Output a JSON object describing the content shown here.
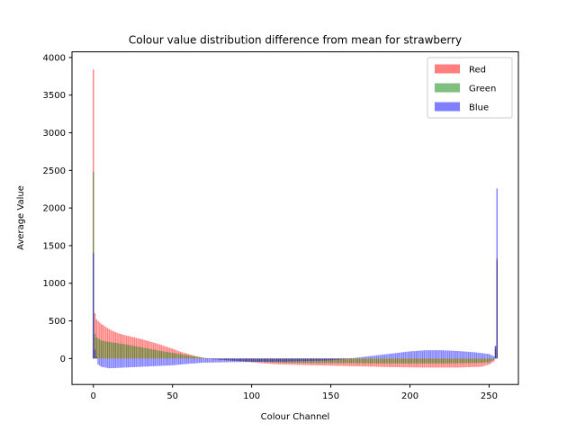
{
  "chart_data": {
    "type": "bar",
    "title": "Colour value distribution difference from mean for strawberry",
    "xlabel": "Colour Channel",
    "ylabel": "Average Value",
    "xlim": [
      -13.5,
      268.5
    ],
    "ylim": [
      -345,
      4075
    ],
    "xticks": [
      0,
      50,
      100,
      150,
      200,
      250
    ],
    "yticks": [
      0,
      500,
      1000,
      1500,
      2000,
      2500,
      3000,
      3500,
      4000
    ],
    "grid": false,
    "legend_position": "top-right",
    "series": [
      {
        "name": "Red",
        "color": "#ff0000",
        "alpha": 0.5,
        "keypoints": [
          [
            0,
            3840
          ],
          [
            1,
            600
          ],
          [
            2,
            520
          ],
          [
            5,
            460
          ],
          [
            10,
            390
          ],
          [
            15,
            340
          ],
          [
            20,
            310
          ],
          [
            30,
            260
          ],
          [
            40,
            200
          ],
          [
            50,
            130
          ],
          [
            55,
            90
          ],
          [
            60,
            60
          ],
          [
            65,
            30
          ],
          [
            70,
            5
          ],
          [
            75,
            -10
          ],
          [
            85,
            -25
          ],
          [
            95,
            -40
          ],
          [
            105,
            -60
          ],
          [
            115,
            -75
          ],
          [
            130,
            -85
          ],
          [
            150,
            -95
          ],
          [
            170,
            -105
          ],
          [
            190,
            -115
          ],
          [
            210,
            -120
          ],
          [
            230,
            -120
          ],
          [
            245,
            -110
          ],
          [
            250,
            -80
          ],
          [
            253,
            -40
          ],
          [
            254,
            160
          ],
          [
            255,
            1330
          ]
        ]
      },
      {
        "name": "Green",
        "color": "#008000",
        "alpha": 0.5,
        "keypoints": [
          [
            0,
            2480
          ],
          [
            1,
            330
          ],
          [
            2,
            280
          ],
          [
            5,
            240
          ],
          [
            10,
            220
          ],
          [
            20,
            190
          ],
          [
            30,
            150
          ],
          [
            40,
            110
          ],
          [
            50,
            75
          ],
          [
            60,
            40
          ],
          [
            70,
            10
          ],
          [
            80,
            -15
          ],
          [
            90,
            -30
          ],
          [
            100,
            -40
          ],
          [
            120,
            -55
          ],
          [
            140,
            -60
          ],
          [
            160,
            -60
          ],
          [
            180,
            -65
          ],
          [
            200,
            -65
          ],
          [
            220,
            -65
          ],
          [
            240,
            -60
          ],
          [
            250,
            -50
          ],
          [
            253,
            -20
          ],
          [
            254,
            120
          ],
          [
            255,
            1300
          ]
        ]
      },
      {
        "name": "Blue",
        "color": "#0000ff",
        "alpha": 0.5,
        "keypoints": [
          [
            0,
            1400
          ],
          [
            1,
            120
          ],
          [
            3,
            -80
          ],
          [
            5,
            -110
          ],
          [
            10,
            -130
          ],
          [
            20,
            -120
          ],
          [
            30,
            -110
          ],
          [
            40,
            -100
          ],
          [
            50,
            -90
          ],
          [
            60,
            -70
          ],
          [
            70,
            -55
          ],
          [
            80,
            -50
          ],
          [
            100,
            -45
          ],
          [
            120,
            -40
          ],
          [
            140,
            -30
          ],
          [
            150,
            -25
          ],
          [
            160,
            -5
          ],
          [
            170,
            20
          ],
          [
            180,
            45
          ],
          [
            190,
            70
          ],
          [
            200,
            95
          ],
          [
            210,
            110
          ],
          [
            220,
            110
          ],
          [
            230,
            100
          ],
          [
            240,
            85
          ],
          [
            250,
            60
          ],
          [
            253,
            30
          ],
          [
            254,
            170
          ],
          [
            255,
            2260
          ]
        ]
      }
    ]
  }
}
